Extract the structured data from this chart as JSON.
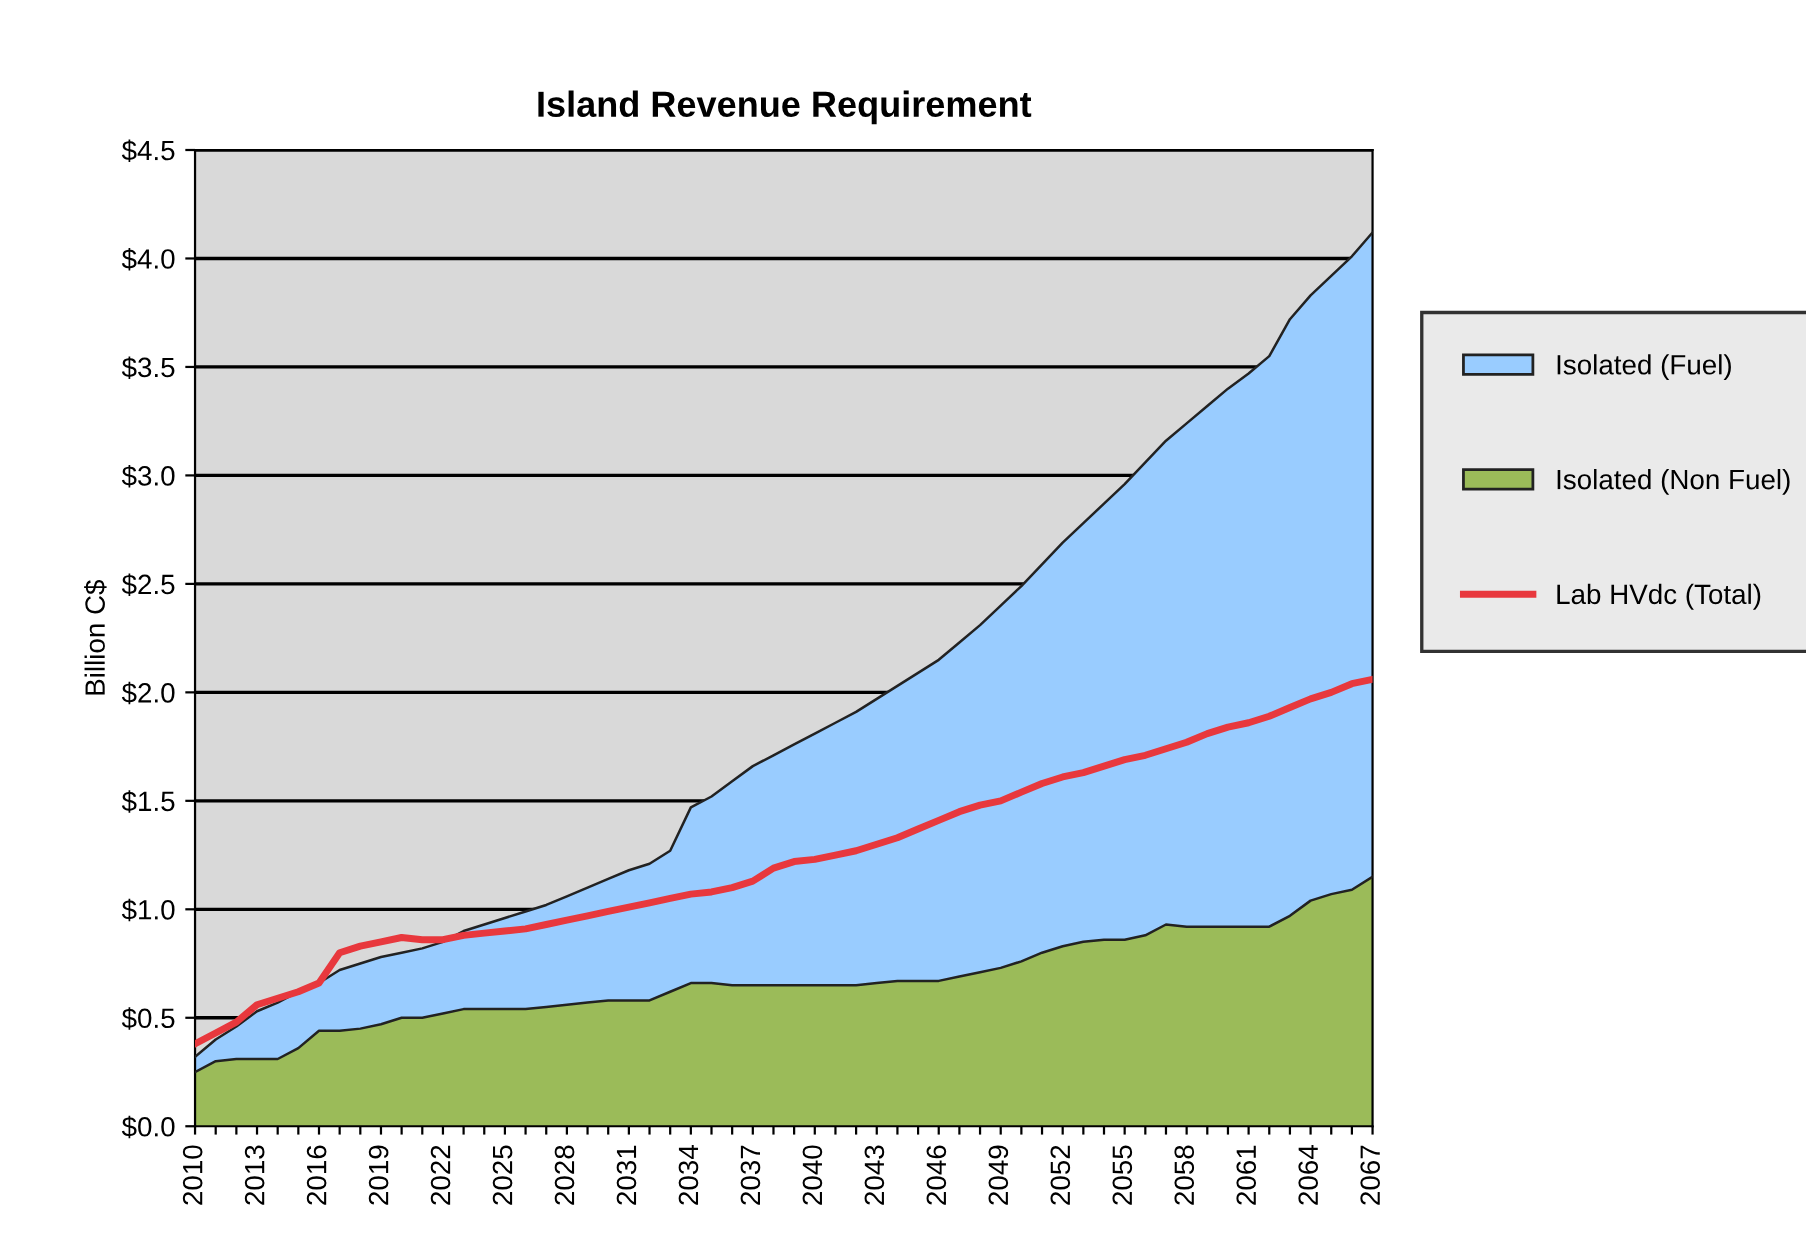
{
  "chart_data": {
    "type": "area",
    "title": "Island Revenue Requirement",
    "ylabel": "Billion C$",
    "stacked": true,
    "grid": "y",
    "legend": "right",
    "categories": [
      "2010",
      null,
      null,
      "2013",
      null,
      null,
      "2016",
      null,
      null,
      "2019",
      null,
      null,
      "2022",
      null,
      null,
      "2025",
      null,
      null,
      "2028",
      null,
      null,
      "2031",
      null,
      null,
      "2034",
      null,
      null,
      "2037",
      null,
      null,
      "2040",
      null,
      null,
      "2043",
      null,
      null,
      "2046",
      null,
      null,
      "2049",
      null,
      null,
      "2052",
      null,
      null,
      "2055",
      null,
      null,
      "2058",
      null,
      null,
      "2061",
      null,
      null,
      "2064",
      null,
      null,
      "2067"
    ],
    "ylim": [
      0,
      4.5
    ],
    "yticks": [
      {
        "value": 0,
        "label": "$0.0"
      },
      {
        "value": 0.5,
        "label": "$0.5"
      },
      {
        "value": 1,
        "label": "$1.0"
      },
      {
        "value": 1.5,
        "label": "$1.5"
      },
      {
        "value": 2,
        "label": "$2.0"
      },
      {
        "value": 2.5,
        "label": "$2.5"
      },
      {
        "value": 3,
        "label": "$3.0"
      },
      {
        "value": 3.5,
        "label": "$3.5"
      },
      {
        "value": 4,
        "label": "$4.0"
      },
      {
        "value": 4.5,
        "label": "$4.5"
      }
    ],
    "series": [
      {
        "name": "Isolated (Non Fuel)",
        "color": "#9bbb59",
        "values": [
          0.25,
          0.3,
          0.31,
          0.31,
          0.31,
          0.36,
          0.44,
          0.44,
          0.45,
          0.47,
          0.5,
          0.5,
          0.52,
          0.54,
          0.54,
          0.54,
          0.54,
          0.55,
          0.56,
          0.57,
          0.58,
          0.58,
          0.58,
          0.62,
          0.66,
          0.66,
          0.65,
          0.65,
          0.65,
          0.65,
          0.65,
          0.65,
          0.65,
          0.66,
          0.67,
          0.67,
          0.67,
          0.69,
          0.71,
          0.73,
          0.76,
          0.8,
          0.83,
          0.85,
          0.86,
          0.86,
          0.88,
          0.93,
          0.92,
          0.92,
          0.92,
          0.92,
          0.92,
          0.97,
          1.04,
          1.07,
          1.09,
          1.15
        ]
      },
      {
        "name": "Isolated (Fuel)",
        "color": "#99ccff",
        "values": [
          0.07,
          0.1,
          0.15,
          0.22,
          0.26,
          0.26,
          0.22,
          0.28,
          0.3,
          0.31,
          0.3,
          0.32,
          0.33,
          0.36,
          0.39,
          0.42,
          0.45,
          0.47,
          0.5,
          0.53,
          0.56,
          0.6,
          0.63,
          0.65,
          0.81,
          0.86,
          0.94,
          1.01,
          1.06,
          1.11,
          1.16,
          1.21,
          1.26,
          1.31,
          1.36,
          1.42,
          1.48,
          1.54,
          1.6,
          1.67,
          1.73,
          1.79,
          1.86,
          1.93,
          2.01,
          2.1,
          2.18,
          2.23,
          2.32,
          2.4,
          2.48,
          2.55,
          2.63,
          2.75,
          2.79,
          2.85,
          2.92,
          2.97
        ]
      },
      {
        "name": "Lab HVdc (Total)",
        "type": "line",
        "color": "#e8383d",
        "values": [
          0.38,
          0.43,
          0.48,
          0.56,
          0.59,
          0.62,
          0.66,
          0.8,
          0.83,
          0.85,
          0.87,
          0.86,
          0.86,
          0.88,
          0.89,
          0.9,
          0.91,
          0.93,
          0.95,
          0.97,
          0.99,
          1.01,
          1.03,
          1.05,
          1.07,
          1.08,
          1.1,
          1.13,
          1.19,
          1.22,
          1.23,
          1.25,
          1.27,
          1.3,
          1.33,
          1.37,
          1.41,
          1.45,
          1.48,
          1.5,
          1.54,
          1.58,
          1.61,
          1.63,
          1.66,
          1.69,
          1.71,
          1.74,
          1.77,
          1.81,
          1.84,
          1.86,
          1.89,
          1.93,
          1.97,
          2.0,
          2.04,
          2.06
        ]
      }
    ]
  }
}
